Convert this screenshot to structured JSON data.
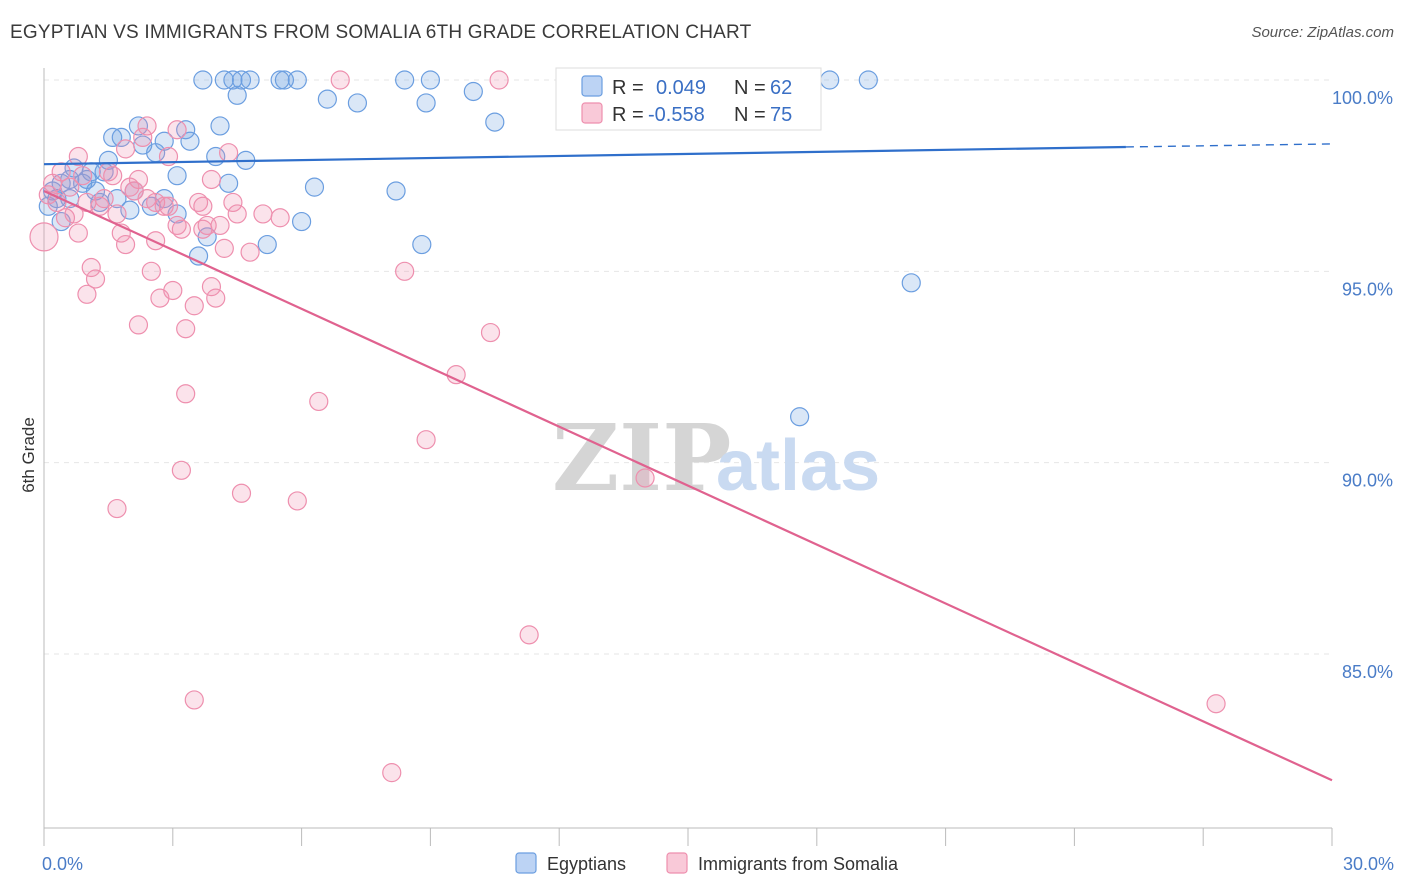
{
  "header": {
    "title": "EGYPTIAN VS IMMIGRANTS FROM SOMALIA 6TH GRADE CORRELATION CHART",
    "source": "Source: ZipAtlas.com"
  },
  "watermark": {
    "zip": "ZIP",
    "atlas": "atlas"
  },
  "legend": {
    "rows": [
      {
        "r_label": "R =",
        "r_value": "0.049",
        "n_label": "N =",
        "n_value": "62",
        "color": "#6b9ee0"
      },
      {
        "r_label": "R =",
        "r_value": "-0.558",
        "n_label": "N =",
        "n_value": "75",
        "color": "#ee8fae"
      }
    ]
  },
  "bottom_legend": [
    {
      "label": "Egyptians",
      "color": "#6b9ee0"
    },
    {
      "label": "Immigrants from Somalia",
      "color": "#ee8fae"
    }
  ],
  "chart_data": {
    "type": "scatter",
    "xlabel": "",
    "ylabel": "6th Grade",
    "xlim": [
      0,
      30
    ],
    "ylim": [
      80.5,
      100.8
    ],
    "x_tick_labels": [
      {
        "value": 0,
        "label": "0.0%"
      },
      {
        "value": 30,
        "label": "30.0%"
      }
    ],
    "y_tick_labels": [
      {
        "value": 100,
        "label": "100.0%"
      },
      {
        "value": 95,
        "label": "95.0%"
      },
      {
        "value": 90,
        "label": "90.0%"
      },
      {
        "value": 85,
        "label": "85.0%"
      }
    ],
    "grid": true,
    "series": [
      {
        "name": "Egyptians",
        "color": "#6b9ee0",
        "trend": {
          "x": [
            0,
            25.2
          ],
          "y": [
            97.8,
            98.25
          ],
          "dashed_to": [
            30,
            98.33
          ]
        },
        "points": [
          [
            0.1,
            96.7
          ],
          [
            0.2,
            97.1
          ],
          [
            0.3,
            96.9
          ],
          [
            0.4,
            97.3
          ],
          [
            0.4,
            96.3
          ],
          [
            0.6,
            97.4
          ],
          [
            0.6,
            96.9
          ],
          [
            0.7,
            97.7
          ],
          [
            0.9,
            97.3
          ],
          [
            1.0,
            97.4
          ],
          [
            1.1,
            97.6
          ],
          [
            1.2,
            97.1
          ],
          [
            1.3,
            96.8
          ],
          [
            1.4,
            97.6
          ],
          [
            1.5,
            97.9
          ],
          [
            1.6,
            98.5
          ],
          [
            1.7,
            96.9
          ],
          [
            1.8,
            98.5
          ],
          [
            2.0,
            96.6
          ],
          [
            2.1,
            97.1
          ],
          [
            2.2,
            98.8
          ],
          [
            2.3,
            98.3
          ],
          [
            2.5,
            96.7
          ],
          [
            2.6,
            98.1
          ],
          [
            2.8,
            98.4
          ],
          [
            2.8,
            96.9
          ],
          [
            3.1,
            96.5
          ],
          [
            3.1,
            97.5
          ],
          [
            3.3,
            98.7
          ],
          [
            3.4,
            98.4
          ],
          [
            3.6,
            95.4
          ],
          [
            3.7,
            100.0
          ],
          [
            3.8,
            95.9
          ],
          [
            4.0,
            98.0
          ],
          [
            4.1,
            98.8
          ],
          [
            4.2,
            100.0
          ],
          [
            4.3,
            97.3
          ],
          [
            4.4,
            100.0
          ],
          [
            4.5,
            99.6
          ],
          [
            4.6,
            100.0
          ],
          [
            4.7,
            97.9
          ],
          [
            4.8,
            100.0
          ],
          [
            5.2,
            95.7
          ],
          [
            5.5,
            100.0
          ],
          [
            5.6,
            100.0
          ],
          [
            5.9,
            100.0
          ],
          [
            6.0,
            96.3
          ],
          [
            6.3,
            97.2
          ],
          [
            6.6,
            99.5
          ],
          [
            7.3,
            99.4
          ],
          [
            8.2,
            97.1
          ],
          [
            8.4,
            100.0
          ],
          [
            8.8,
            95.7
          ],
          [
            8.9,
            99.4
          ],
          [
            9.0,
            100.0
          ],
          [
            10.0,
            99.7
          ],
          [
            10.5,
            98.9
          ],
          [
            12.4,
            100.0
          ],
          [
            18.3,
            100.0
          ],
          [
            19.2,
            100.0
          ],
          [
            17.6,
            91.2
          ],
          [
            20.2,
            94.7
          ]
        ]
      },
      {
        "name": "Immigrants from Somalia",
        "color": "#ee8fae",
        "trend": {
          "x": [
            0,
            30
          ],
          "y": [
            97.1,
            81.7
          ]
        },
        "points": [
          [
            0.0,
            95.9
          ],
          [
            0.1,
            97.0
          ],
          [
            0.2,
            97.3
          ],
          [
            0.3,
            96.8
          ],
          [
            0.4,
            97.6
          ],
          [
            0.5,
            96.4
          ],
          [
            0.6,
            97.2
          ],
          [
            0.7,
            96.5
          ],
          [
            0.8,
            96.0
          ],
          [
            0.8,
            98.0
          ],
          [
            0.9,
            97.5
          ],
          [
            1.0,
            96.8
          ],
          [
            1.0,
            94.4
          ],
          [
            1.1,
            95.1
          ],
          [
            1.2,
            94.8
          ],
          [
            1.3,
            96.7
          ],
          [
            1.5,
            97.6
          ],
          [
            1.6,
            97.5
          ],
          [
            1.7,
            96.5
          ],
          [
            1.7,
            88.8
          ],
          [
            1.8,
            96.0
          ],
          [
            1.9,
            98.2
          ],
          [
            1.9,
            95.7
          ],
          [
            2.0,
            97.2
          ],
          [
            2.1,
            97.1
          ],
          [
            2.2,
            93.6
          ],
          [
            2.2,
            97.4
          ],
          [
            2.4,
            98.8
          ],
          [
            2.4,
            96.9
          ],
          [
            2.5,
            95.0
          ],
          [
            2.6,
            96.8
          ],
          [
            2.6,
            95.8
          ],
          [
            2.7,
            94.3
          ],
          [
            2.9,
            96.7
          ],
          [
            2.9,
            98.0
          ],
          [
            3.0,
            94.5
          ],
          [
            3.1,
            96.2
          ],
          [
            3.1,
            98.7
          ],
          [
            3.2,
            96.1
          ],
          [
            3.2,
            89.8
          ],
          [
            3.3,
            91.8
          ],
          [
            3.3,
            93.5
          ],
          [
            3.5,
            94.1
          ],
          [
            3.6,
            96.8
          ],
          [
            3.7,
            96.7
          ],
          [
            3.8,
            96.2
          ],
          [
            3.9,
            97.4
          ],
          [
            3.9,
            94.6
          ],
          [
            4.0,
            94.3
          ],
          [
            4.1,
            96.2
          ],
          [
            4.2,
            95.6
          ],
          [
            4.3,
            98.1
          ],
          [
            4.4,
            96.8
          ],
          [
            4.6,
            89.2
          ],
          [
            4.8,
            95.5
          ],
          [
            3.5,
            83.8
          ],
          [
            5.1,
            96.5
          ],
          [
            5.5,
            96.4
          ],
          [
            5.9,
            89.0
          ],
          [
            6.4,
            91.6
          ],
          [
            6.9,
            100.0
          ],
          [
            8.1,
            81.9
          ],
          [
            8.4,
            95.0
          ],
          [
            8.9,
            90.6
          ],
          [
            9.6,
            92.3
          ],
          [
            10.4,
            93.4
          ],
          [
            10.6,
            100.0
          ],
          [
            11.3,
            85.5
          ],
          [
            14.0,
            89.6
          ],
          [
            27.3,
            83.7
          ],
          [
            4.5,
            96.5
          ],
          [
            3.7,
            96.1
          ],
          [
            2.8,
            96.7
          ],
          [
            1.4,
            96.9
          ],
          [
            2.3,
            98.5
          ]
        ]
      }
    ]
  }
}
